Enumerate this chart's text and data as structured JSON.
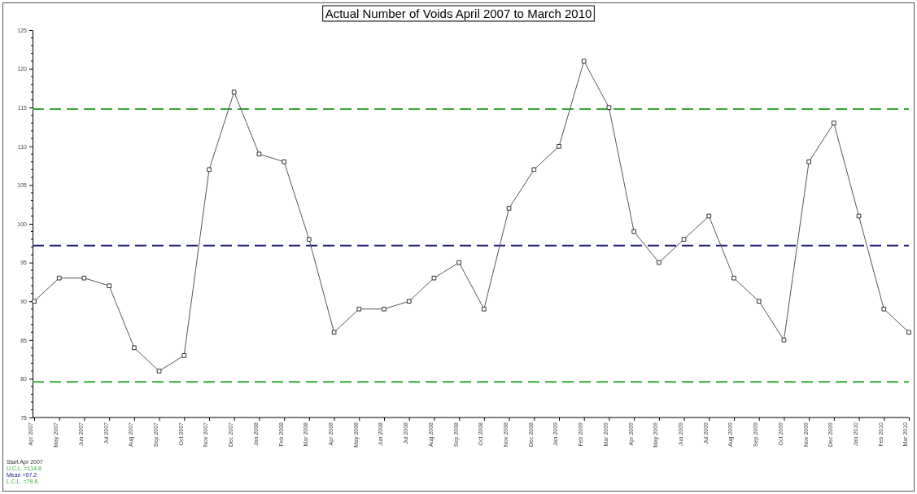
{
  "chart_data": {
    "type": "line",
    "title": "Actual Number of Voids April 2007 to March 2010",
    "categories": [
      "Apr 2007",
      "May 2007",
      "Jun 2007",
      "Jul 2007",
      "Aug 2007",
      "Sep 2007",
      "Oct 2007",
      "Nov 2007",
      "Dec 2007",
      "Jan 2008",
      "Feb 2008",
      "Mar 2008",
      "Apr 2008",
      "May 2008",
      "Jun 2008",
      "Jul 2008",
      "Aug 2008",
      "Sep 2008",
      "Oct 2008",
      "Nov 2008",
      "Dec 2008",
      "Jan 2009",
      "Feb 2009",
      "Mar 2009",
      "Apr 2009",
      "May 2009",
      "Jun 2009",
      "Jul 2009",
      "Aug 2009",
      "Sep 2009",
      "Oct 2009",
      "Nov 2009",
      "Dec 2009",
      "Jan 2010",
      "Feb 2010",
      "Mar 2010"
    ],
    "series": [
      {
        "color": "#555555",
        "values": [
          90,
          93,
          93,
          92,
          84,
          81,
          83,
          107,
          117,
          109,
          108,
          98,
          86,
          89,
          89,
          90,
          93,
          95,
          89,
          102,
          107,
          110,
          121,
          115,
          99,
          95,
          98,
          101,
          93,
          90,
          85,
          108,
          113,
          101,
          89,
          86
        ]
      }
    ],
    "ylim": [
      75,
      125
    ],
    "yticks": [
      75,
      80,
      85,
      90,
      95,
      100,
      105,
      110,
      115,
      120,
      125
    ],
    "grid": false,
    "marker": "square",
    "line_style": "solid",
    "ref_lines": [
      {
        "axis": "y",
        "value": 114.8,
        "label": "U.C.L. =114.8",
        "color": "#33aa33",
        "line_style": "dashed"
      },
      {
        "axis": "y",
        "value": 97.2,
        "label": "Mean =97.2",
        "color": "#1a1a7a",
        "line_style": "dashed"
      },
      {
        "axis": "y",
        "value": 79.6,
        "label": "L.C.L. =79.6",
        "color": "#33aa33",
        "line_style": "dashed"
      }
    ],
    "annotations": [
      "Start Apr 2007"
    ]
  }
}
